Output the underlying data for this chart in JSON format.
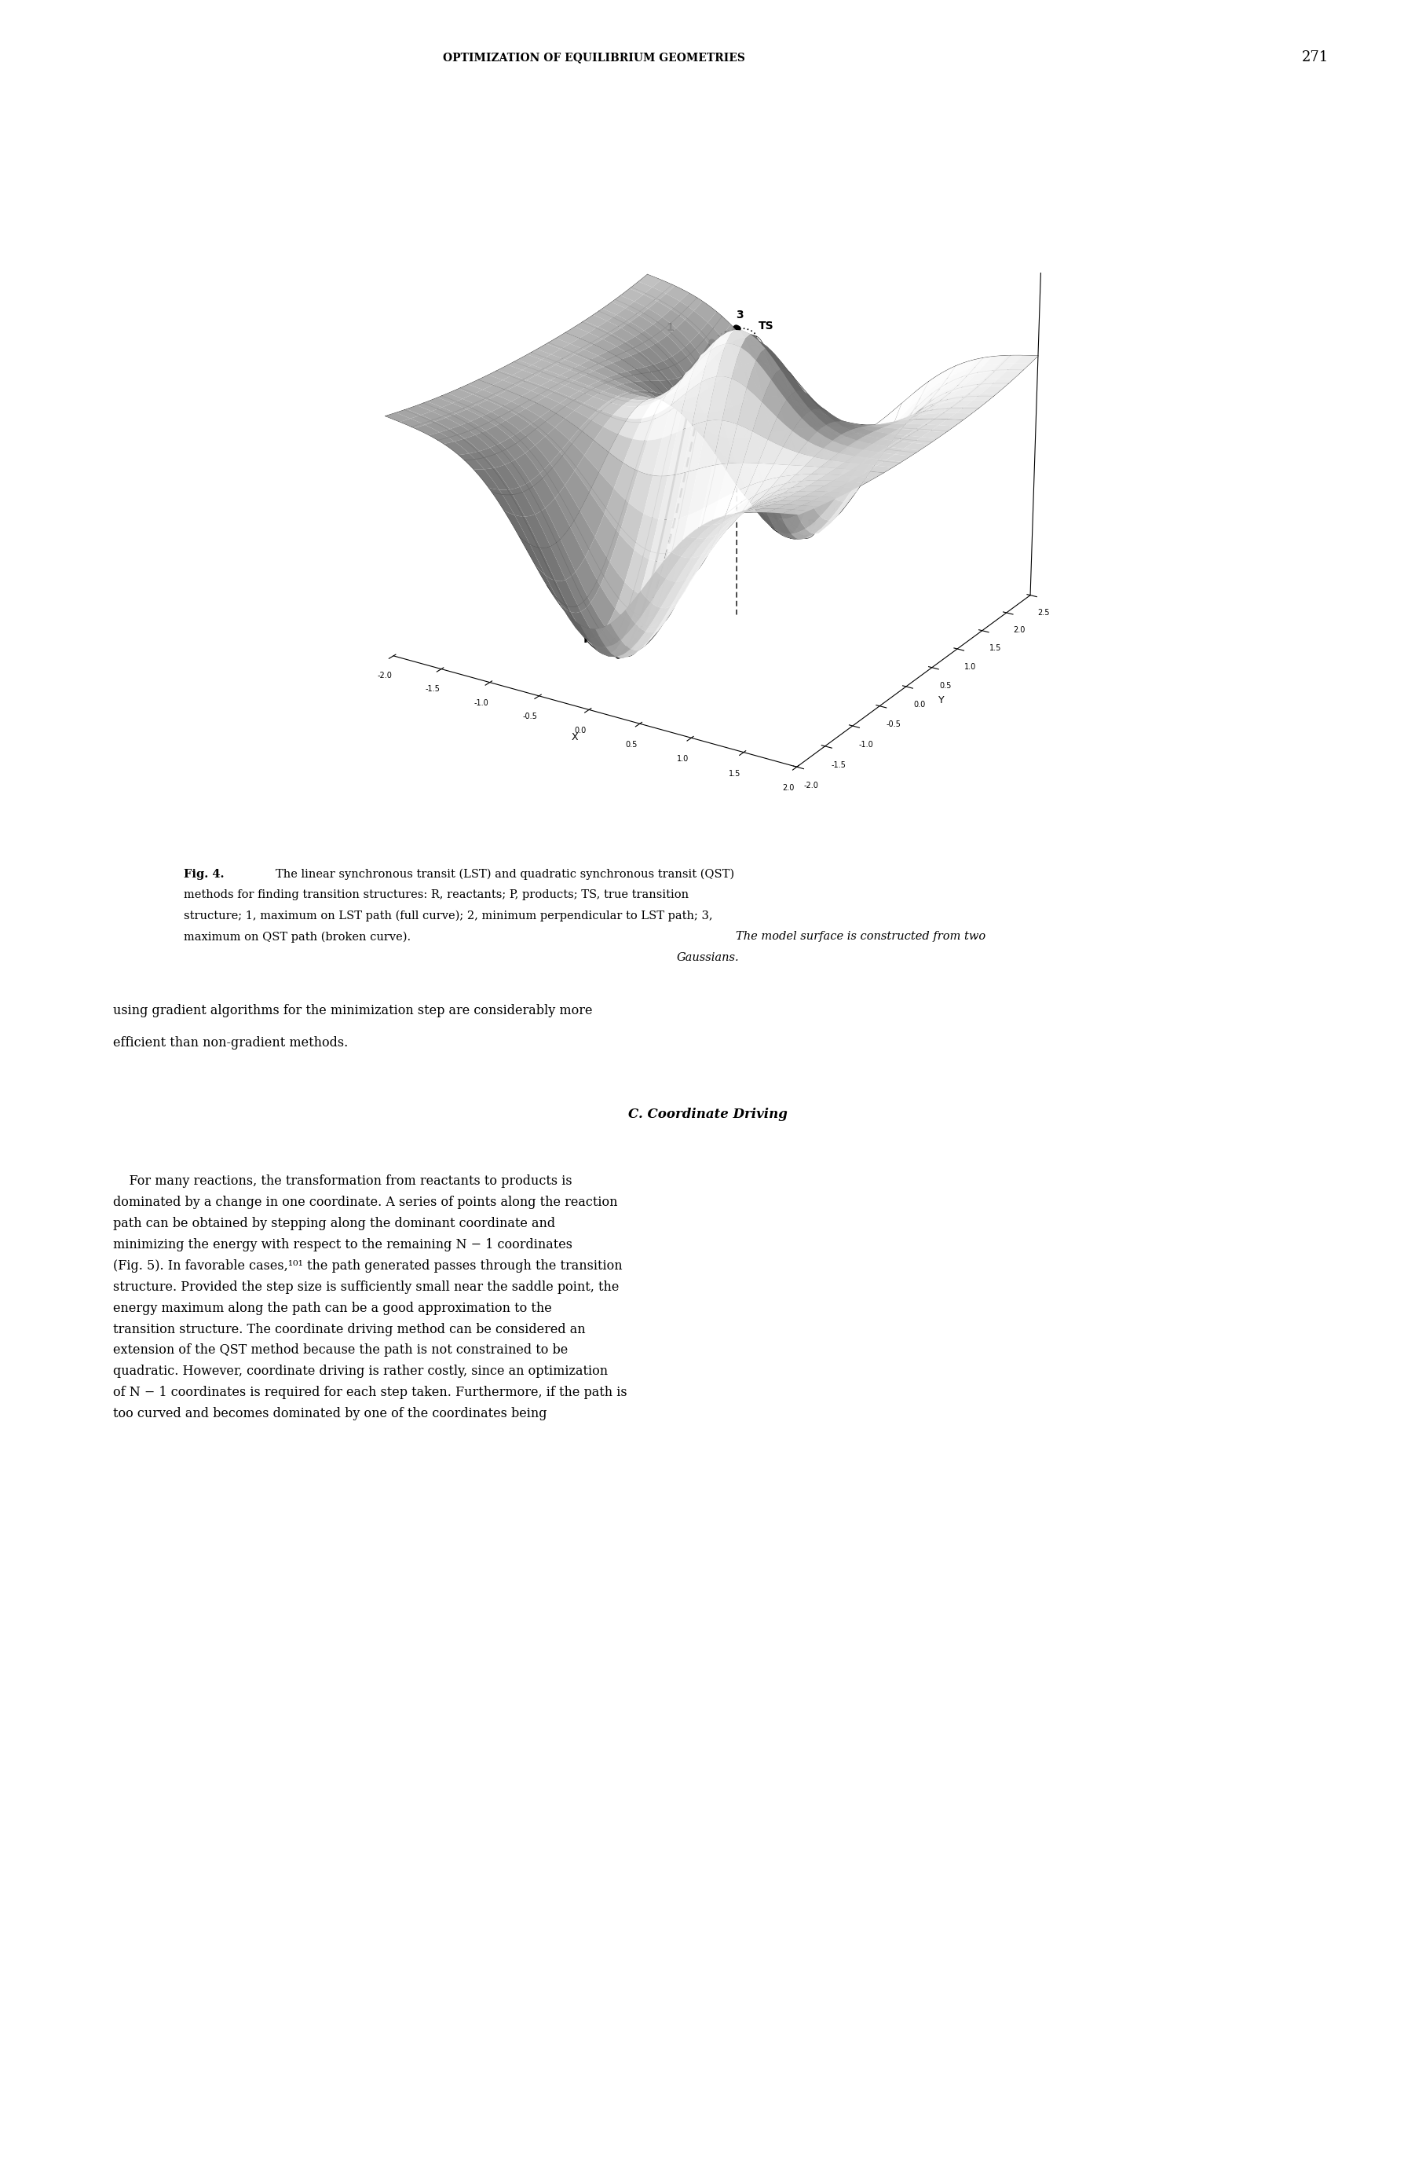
{
  "page_header": "OPTIMIZATION OF EQUILIBRIUM GEOMETRIES",
  "page_number": "271",
  "fig_caption_line1": "Fig. 4.  The linear synchronous transit (LST) and quadratic synchronous transit (QST)",
  "fig_caption_line2": "methods for finding transition structures: R, reactants; P, products; TS, true transition",
  "fig_caption_line3": "structure; 1, maximum on LST path (full curve); 2, minimum perpendicular to LST path; 3,",
  "fig_caption_line4": "maximum on QST path (broken curve).  The model surface is constructed from two",
  "fig_caption_line5": "Gaussians.",
  "body_text_1a": "using gradient algorithms for the minimization step are considerably more",
  "body_text_1b": "efficient than non-gradient methods.",
  "section_title": "C. Coordinate Driving",
  "body_para_lines": [
    "    For many reactions, the transformation from reactants to products is",
    "dominated by a change in one coordinate. A series of points along the reaction",
    "path can be obtained by stepping along the dominant coordinate and",
    "minimizing the energy with respect to the remaining N − 1 coordinates",
    "(Fig. 5). In favorable cases,¹⁰¹ the path generated passes through the transition",
    "structure. Provided the step size is sufficiently small near the saddle point, the",
    "energy maximum along the path can be a good approximation to the",
    "transition structure. The coordinate driving method can be considered an",
    "extension of the QST method because the path is not constrained to be",
    "quadratic. However, coordinate driving is rather costly, since an optimization",
    "of N − 1 coordinates is required for each step taken. Furthermore, if the path is",
    "too curved and becomes dominated by one of the coordinates being"
  ],
  "background_color": "#ffffff",
  "text_color": "#000000"
}
